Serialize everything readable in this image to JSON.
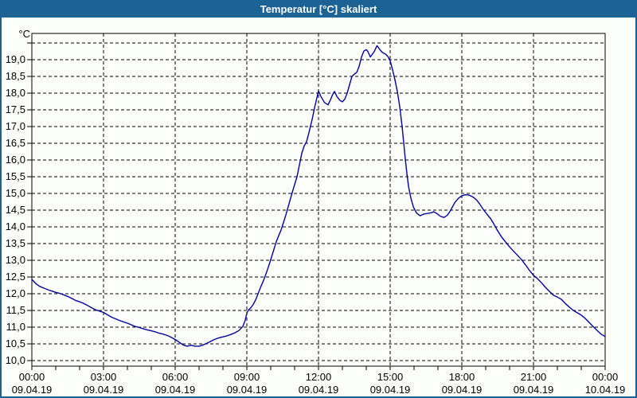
{
  "window": {
    "title": "Temperatur [°C] skaliert",
    "title_bar_color": "#1d6295",
    "background_color": "#fcfefb"
  },
  "chart_data": {
    "type": "line",
    "title": "Temperatur [°C] skaliert",
    "xlabel": "",
    "ylabel": "°C",
    "ylim": [
      10.0,
      19.5
    ],
    "ytick_step": 0.5,
    "grid": true,
    "legend_position": "none",
    "line_color": "#0000a0",
    "grid_color": "#000000",
    "x_hours_span": [
      0,
      24
    ],
    "yticks": [
      {
        "v": 10.0,
        "label": "10,0"
      },
      {
        "v": 10.5,
        "label": "10,5"
      },
      {
        "v": 11.0,
        "label": "11,0"
      },
      {
        "v": 11.5,
        "label": "11,5"
      },
      {
        "v": 12.0,
        "label": "12,0"
      },
      {
        "v": 12.5,
        "label": "12,5"
      },
      {
        "v": 13.0,
        "label": "13,0"
      },
      {
        "v": 13.5,
        "label": "13,5"
      },
      {
        "v": 14.0,
        "label": "14,0"
      },
      {
        "v": 14.5,
        "label": "14,5"
      },
      {
        "v": 15.0,
        "label": "15,0"
      },
      {
        "v": 15.5,
        "label": "15,5"
      },
      {
        "v": 16.0,
        "label": "16,0"
      },
      {
        "v": 16.5,
        "label": "16,5"
      },
      {
        "v": 17.0,
        "label": "17,0"
      },
      {
        "v": 17.5,
        "label": "17,5"
      },
      {
        "v": 18.0,
        "label": "18,0"
      },
      {
        "v": 18.5,
        "label": "18,5"
      },
      {
        "v": 19.0,
        "label": "19,0"
      },
      {
        "v": 19.5,
        "label": ""
      }
    ],
    "xticks": [
      {
        "hour": 0,
        "time": "00:00",
        "date": "09.04.19"
      },
      {
        "hour": 3,
        "time": "03:00",
        "date": "09.04.19"
      },
      {
        "hour": 6,
        "time": "06:00",
        "date": "09.04.19"
      },
      {
        "hour": 9,
        "time": "09:00",
        "date": "09.04.19"
      },
      {
        "hour": 12,
        "time": "12:00",
        "date": "09.04.19"
      },
      {
        "hour": 15,
        "time": "15:00",
        "date": "09.04.19"
      },
      {
        "hour": 18,
        "time": "18:00",
        "date": "09.04.19"
      },
      {
        "hour": 21,
        "time": "21:00",
        "date": "09.04.19"
      },
      {
        "hour": 24,
        "time": "00:00",
        "date": "10.04.19"
      }
    ],
    "minor_xtick_every_hours": 1,
    "series": [
      {
        "name": "Temperatur",
        "points": [
          [
            0,
            12.43
          ],
          [
            0.17,
            12.3
          ],
          [
            0.33,
            12.22
          ],
          [
            0.5,
            12.17
          ],
          [
            0.67,
            12.12
          ],
          [
            0.83,
            12.08
          ],
          [
            1,
            12.04
          ],
          [
            1.17,
            12.01
          ],
          [
            1.33,
            11.97
          ],
          [
            1.5,
            11.92
          ],
          [
            1.67,
            11.86
          ],
          [
            1.83,
            11.8
          ],
          [
            2,
            11.76
          ],
          [
            2.17,
            11.71
          ],
          [
            2.33,
            11.65
          ],
          [
            2.5,
            11.58
          ],
          [
            2.67,
            11.52
          ],
          [
            2.83,
            11.48
          ],
          [
            3,
            11.44
          ],
          [
            3.17,
            11.37
          ],
          [
            3.33,
            11.3
          ],
          [
            3.5,
            11.25
          ],
          [
            3.67,
            11.2
          ],
          [
            3.83,
            11.16
          ],
          [
            4,
            11.12
          ],
          [
            4.17,
            11.07
          ],
          [
            4.33,
            11.02
          ],
          [
            4.5,
            10.99
          ],
          [
            4.67,
            10.95
          ],
          [
            4.83,
            10.92
          ],
          [
            5,
            10.89
          ],
          [
            5.17,
            10.86
          ],
          [
            5.33,
            10.82
          ],
          [
            5.5,
            10.79
          ],
          [
            5.67,
            10.75
          ],
          [
            5.83,
            10.7
          ],
          [
            6,
            10.63
          ],
          [
            6.17,
            10.55
          ],
          [
            6.33,
            10.47
          ],
          [
            6.5,
            10.43
          ],
          [
            6.67,
            10.46
          ],
          [
            6.83,
            10.43
          ],
          [
            7,
            10.43
          ],
          [
            7.17,
            10.47
          ],
          [
            7.33,
            10.52
          ],
          [
            7.5,
            10.58
          ],
          [
            7.67,
            10.64
          ],
          [
            7.83,
            10.68
          ],
          [
            8,
            10.71
          ],
          [
            8.17,
            10.74
          ],
          [
            8.33,
            10.78
          ],
          [
            8.5,
            10.83
          ],
          [
            8.67,
            10.9
          ],
          [
            8.83,
            11.02
          ],
          [
            8.93,
            11.2
          ],
          [
            9,
            11.42
          ],
          [
            9.07,
            11.52
          ],
          [
            9.17,
            11.58
          ],
          [
            9.27,
            11.68
          ],
          [
            9.37,
            11.82
          ],
          [
            9.47,
            12.0
          ],
          [
            9.57,
            12.18
          ],
          [
            9.7,
            12.4
          ],
          [
            9.83,
            12.65
          ],
          [
            9.97,
            12.95
          ],
          [
            10.1,
            13.25
          ],
          [
            10.23,
            13.55
          ],
          [
            10.33,
            13.73
          ],
          [
            10.43,
            13.9
          ],
          [
            10.53,
            14.12
          ],
          [
            10.63,
            14.35
          ],
          [
            10.77,
            14.7
          ],
          [
            10.93,
            15.1
          ],
          [
            11.1,
            15.5
          ],
          [
            11.2,
            15.85
          ],
          [
            11.3,
            16.2
          ],
          [
            11.4,
            16.42
          ],
          [
            11.5,
            16.55
          ],
          [
            11.6,
            16.82
          ],
          [
            11.73,
            17.2
          ],
          [
            11.83,
            17.55
          ],
          [
            11.93,
            17.85
          ],
          [
            12,
            18.07
          ],
          [
            12.1,
            17.9
          ],
          [
            12.25,
            17.72
          ],
          [
            12.4,
            17.65
          ],
          [
            12.5,
            17.8
          ],
          [
            12.6,
            17.97
          ],
          [
            12.67,
            18.05
          ],
          [
            12.77,
            17.9
          ],
          [
            12.9,
            17.78
          ],
          [
            13,
            17.74
          ],
          [
            13.1,
            17.82
          ],
          [
            13.2,
            18.0
          ],
          [
            13.3,
            18.25
          ],
          [
            13.4,
            18.5
          ],
          [
            13.5,
            18.57
          ],
          [
            13.6,
            18.62
          ],
          [
            13.7,
            18.8
          ],
          [
            13.8,
            19.08
          ],
          [
            13.9,
            19.26
          ],
          [
            14,
            19.3
          ],
          [
            14.07,
            19.24
          ],
          [
            14.17,
            19.08
          ],
          [
            14.33,
            19.24
          ],
          [
            14.45,
            19.42
          ],
          [
            14.57,
            19.3
          ],
          [
            14.67,
            19.22
          ],
          [
            14.8,
            19.17
          ],
          [
            14.9,
            19.1
          ],
          [
            15,
            18.97
          ],
          [
            15.1,
            18.7
          ],
          [
            15.2,
            18.4
          ],
          [
            15.3,
            18.05
          ],
          [
            15.4,
            17.6
          ],
          [
            15.5,
            17.0
          ],
          [
            15.57,
            16.5
          ],
          [
            15.63,
            16.05
          ],
          [
            15.7,
            15.6
          ],
          [
            15.77,
            15.2
          ],
          [
            15.87,
            14.85
          ],
          [
            15.97,
            14.6
          ],
          [
            16.1,
            14.42
          ],
          [
            16.25,
            14.33
          ],
          [
            16.4,
            14.38
          ],
          [
            16.55,
            14.4
          ],
          [
            16.7,
            14.42
          ],
          [
            16.83,
            14.45
          ],
          [
            16.95,
            14.4
          ],
          [
            17.1,
            14.32
          ],
          [
            17.25,
            14.28
          ],
          [
            17.4,
            14.35
          ],
          [
            17.55,
            14.52
          ],
          [
            17.7,
            14.72
          ],
          [
            17.85,
            14.85
          ],
          [
            18,
            14.93
          ],
          [
            18.15,
            14.96
          ],
          [
            18.3,
            14.95
          ],
          [
            18.45,
            14.9
          ],
          [
            18.6,
            14.82
          ],
          [
            18.75,
            14.68
          ],
          [
            18.9,
            14.52
          ],
          [
            19.05,
            14.38
          ],
          [
            19.2,
            14.25
          ],
          [
            19.33,
            14.1
          ],
          [
            19.5,
            13.88
          ],
          [
            19.67,
            13.69
          ],
          [
            19.83,
            13.55
          ],
          [
            20,
            13.4
          ],
          [
            20.17,
            13.27
          ],
          [
            20.33,
            13.15
          ],
          [
            20.5,
            13.02
          ],
          [
            20.67,
            12.86
          ],
          [
            20.83,
            12.7
          ],
          [
            21,
            12.55
          ],
          [
            21.17,
            12.45
          ],
          [
            21.33,
            12.33
          ],
          [
            21.5,
            12.19
          ],
          [
            21.67,
            12.07
          ],
          [
            21.83,
            11.96
          ],
          [
            22,
            11.9
          ],
          [
            22.17,
            11.83
          ],
          [
            22.33,
            11.71
          ],
          [
            22.5,
            11.6
          ],
          [
            22.67,
            11.5
          ],
          [
            22.83,
            11.43
          ],
          [
            23,
            11.36
          ],
          [
            23.17,
            11.26
          ],
          [
            23.33,
            11.14
          ],
          [
            23.5,
            11.02
          ],
          [
            23.67,
            10.9
          ],
          [
            23.83,
            10.79
          ],
          [
            24,
            10.72
          ]
        ]
      }
    ]
  }
}
